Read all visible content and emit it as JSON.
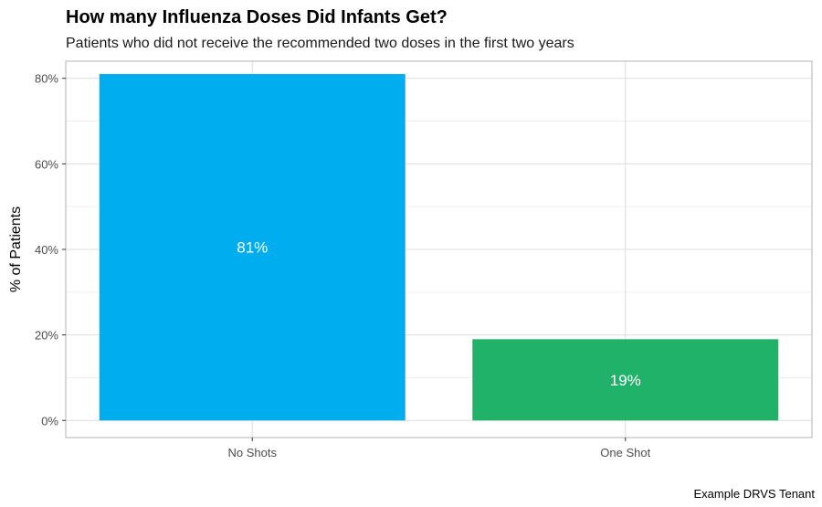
{
  "chart_data": {
    "type": "bar",
    "title": "How many Influenza Doses Did Infants Get?",
    "subtitle": "Patients who did not receive the recommended two doses in the first two years",
    "caption": "Example DRVS Tenant",
    "categories": [
      "No Shots",
      "One Shot"
    ],
    "values": [
      81,
      19
    ],
    "data_labels": [
      "81%",
      "19%"
    ],
    "colors": [
      "#00AEEF",
      "#21B26A"
    ],
    "ylabel": "% of Patients",
    "xlabel": "",
    "ylim": [
      -4,
      84
    ],
    "yticks": [
      0,
      20,
      40,
      60,
      80
    ],
    "ytick_labels": [
      "0%",
      "20%",
      "40%",
      "60%",
      "80%"
    ],
    "grid": true,
    "legend": "none"
  }
}
